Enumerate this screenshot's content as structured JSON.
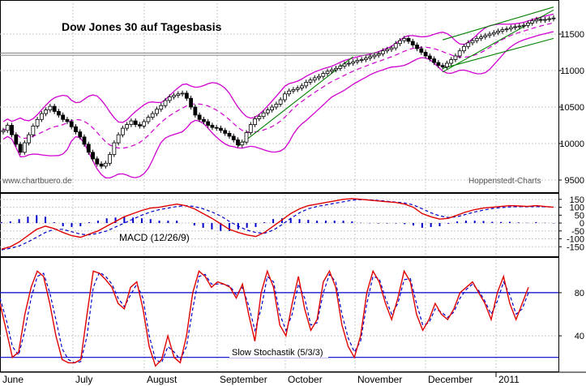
{
  "chart_data": [
    {
      "type": "candlestick",
      "title": "Dow Jones 30 auf Tagesbasis",
      "watermark_left": "www.chartbuero.de",
      "watermark_right": "Hoppenstedt-Charts",
      "ylim": [
        9400,
        11900
      ],
      "y_ticks": [
        9500,
        10000,
        10500,
        11000,
        11500
      ],
      "y_tick_labels": [
        "9500",
        "10000",
        "10500",
        "11000",
        "11500"
      ],
      "months": [
        "June",
        "July",
        "August",
        "September",
        "October",
        "November",
        "December",
        "2011"
      ],
      "overlays": [
        "Bollinger bands",
        "middle band (dashed)",
        "trend lines"
      ],
      "series": [
        {
          "name": "Close",
          "values": [
            10180,
            10250,
            10120,
            9990,
            9880,
            10010,
            10120,
            10240,
            10330,
            10410,
            10460,
            10510,
            10440,
            10390,
            10330,
            10300,
            10230,
            10160,
            10090,
            9990,
            9880,
            9790,
            9720,
            9690,
            9730,
            9850,
            10010,
            10120,
            10210,
            10260,
            10310,
            10260,
            10240,
            10300,
            10360,
            10410,
            10470,
            10520,
            10590,
            10640,
            10660,
            10680,
            10690,
            10620,
            10500,
            10390,
            10330,
            10300,
            10250,
            10220,
            10210,
            10180,
            10140,
            10100,
            10050,
            9980,
            10020,
            10150,
            10260,
            10340,
            10370,
            10420,
            10460,
            10500,
            10540,
            10600,
            10680,
            10720,
            10740,
            10760,
            10790,
            10840,
            10870,
            10900,
            10920,
            10960,
            10990,
            11010,
            11030,
            11060,
            11090,
            11100,
            11120,
            11140,
            11150,
            11170,
            11190,
            11210,
            11230,
            11270,
            11290,
            11310,
            11370,
            11410,
            11440,
            11400,
            11350,
            11300,
            11250,
            11200,
            11160,
            11110,
            11070,
            11050,
            11100,
            11150,
            11200,
            11270,
            11330,
            11380,
            11410,
            11440,
            11460,
            11480,
            11500,
            11520,
            11540,
            11560,
            11570,
            11590,
            11600,
            11610,
            11620,
            11650,
            11680,
            11700,
            11690,
            11700,
            11710,
            11720
          ]
        }
      ]
    },
    {
      "type": "line",
      "title": "MACD (12/26/9)",
      "ylim": [
        -200,
        180
      ],
      "y_ticks": [
        150,
        100,
        50,
        0,
        -50,
        -100,
        -150
      ],
      "y_tick_labels": [
        "150",
        "100",
        "50",
        "0",
        "-50",
        "-100",
        "-150"
      ],
      "series": [
        {
          "name": "MACD",
          "values": [
            -165,
            -150,
            -120,
            -80,
            -40,
            -20,
            -35,
            -60,
            -80,
            -90,
            -70,
            -50,
            -20,
            10,
            40,
            60,
            80,
            95,
            100,
            110,
            120,
            110,
            90,
            60,
            30,
            -5,
            -40,
            -60,
            -75,
            -85,
            -60,
            -20,
            20,
            60,
            90,
            110,
            120,
            130,
            140,
            150,
            155,
            150,
            145,
            140,
            135,
            130,
            120,
            100,
            60,
            40,
            25,
            30,
            50,
            70,
            85,
            95,
            100,
            105,
            110,
            108,
            105,
            110,
            105,
            100
          ]
        },
        {
          "name": "Signal",
          "values": [
            -170,
            -160,
            -145,
            -120,
            -90,
            -60,
            -40,
            -40,
            -55,
            -70,
            -75,
            -65,
            -50,
            -25,
            0,
            25,
            50,
            70,
            85,
            95,
            105,
            110,
            105,
            90,
            70,
            45,
            10,
            -20,
            -45,
            -60,
            -65,
            -45,
            -10,
            30,
            65,
            90,
            105,
            115,
            125,
            135,
            145,
            148,
            147,
            143,
            138,
            133,
            127,
            115,
            90,
            65,
            45,
            35,
            40,
            55,
            70,
            82,
            92,
            98,
            102,
            104,
            103,
            104,
            103,
            102
          ]
        },
        {
          "name": "Histogram",
          "values": [
            5,
            10,
            25,
            40,
            50,
            40,
            5,
            -20,
            -25,
            -20,
            5,
            15,
            30,
            35,
            40,
            35,
            30,
            25,
            15,
            15,
            15,
            0,
            -15,
            -30,
            -40,
            -50,
            -50,
            -40,
            -30,
            -25,
            5,
            25,
            30,
            30,
            25,
            20,
            15,
            15,
            15,
            15,
            10,
            2,
            -2,
            -3,
            -3,
            -3,
            -7,
            -15,
            -30,
            -25,
            -20,
            -5,
            10,
            15,
            15,
            13,
            8,
            7,
            8,
            4,
            2,
            6,
            2,
            -2
          ]
        }
      ]
    },
    {
      "type": "line",
      "title": "Slow Stochastik (5/3/3)",
      "ylim": [
        10,
        110
      ],
      "y_ticks": [
        80,
        40
      ],
      "y_tick_labels": [
        "80",
        "40"
      ],
      "reference_lines": [
        80,
        20
      ],
      "series": [
        {
          "name": "%K",
          "values": [
            70,
            45,
            20,
            25,
            60,
            85,
            100,
            95,
            70,
            40,
            18,
            15,
            15,
            18,
            60,
            100,
            98,
            92,
            85,
            70,
            65,
            85,
            90,
            65,
            30,
            12,
            18,
            40,
            20,
            15,
            40,
            80,
            100,
            95,
            85,
            90,
            88,
            85,
            75,
            88,
            60,
            35,
            80,
            100,
            85,
            50,
            40,
            70,
            95,
            65,
            45,
            55,
            90,
            100,
            85,
            50,
            30,
            20,
            40,
            80,
            100,
            90,
            70,
            55,
            75,
            100,
            90,
            60,
            45,
            55,
            70,
            60,
            55,
            65,
            80,
            85,
            90,
            80,
            70,
            55,
            80,
            95,
            70,
            55,
            70,
            85
          ]
        },
        {
          "name": "%D",
          "values": [
            75,
            55,
            30,
            22,
            45,
            75,
            95,
            98,
            80,
            55,
            28,
            18,
            15,
            16,
            40,
            85,
            99,
            95,
            88,
            75,
            67,
            78,
            88,
            75,
            40,
            18,
            15,
            30,
            25,
            18,
            30,
            65,
            95,
            97,
            88,
            88,
            88,
            86,
            78,
            85,
            68,
            45,
            65,
            95,
            90,
            60,
            45,
            60,
            88,
            75,
            50,
            52,
            80,
            97,
            90,
            60,
            38,
            25,
            35,
            70,
            95,
            93,
            75,
            60,
            70,
            92,
            93,
            70,
            50,
            52,
            65,
            62,
            57,
            62,
            75,
            83,
            88,
            82,
            72,
            60,
            72,
            90,
            78,
            60,
            65,
            80
          ]
        }
      ]
    }
  ]
}
